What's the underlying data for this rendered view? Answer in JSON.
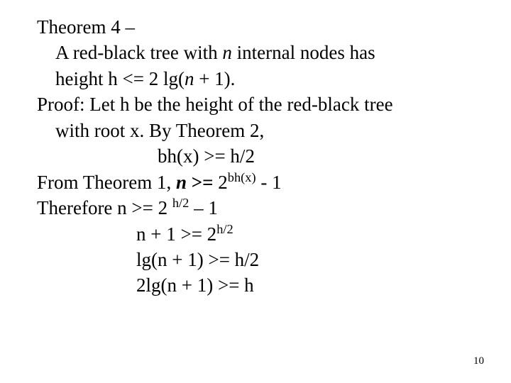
{
  "background_color": "#ffffff",
  "text_color": "#000000",
  "font_family": "Times New Roman",
  "body_fontsize_pt": 27,
  "page_number_fontsize_pt": 15,
  "page_number": "10",
  "lines": {
    "l1": "Theorem 4 –",
    "l2_pre": "A red-black tree with ",
    "l2_n": "n",
    "l2_post": " internal nodes has ",
    "l3_pre": "height  h <= 2 lg(",
    "l3_n": "n",
    "l3_post": " + 1).",
    "l4": "Proof: Let h be the height of the red-black tree ",
    "l5": "with root x. By Theorem 2,",
    "l6": "bh(x) >= h/2",
    "l7_pre": "From Theorem 1, ",
    "l7_n": "n ",
    "l7_ge": ">=  ",
    "l7_two": "2",
    "l7_exp": "bh(x)",
    "l7_post": " - 1",
    "l8_pre": "Therefore n >= 2 ",
    "l8_exp": "h/2",
    "l8_post": " – 1",
    "l9_pre": "n + 1 >= 2",
    "l9_exp": "h/2",
    "l10": "lg(n  + 1) >= h/2",
    "l11": "2lg(n + 1) >= h"
  }
}
